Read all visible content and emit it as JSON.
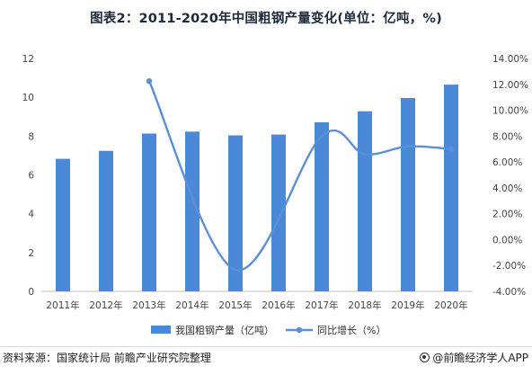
{
  "title": "图表2：2011-2020年中国粗钢产量变化(单位：亿吨，%)",
  "source": "资料来源：国家统计局 前瞻产业研究院整理",
  "brand": "@前瞻经济学人APP",
  "colors": {
    "bar": "#4a88d8",
    "line": "#5b8fd6",
    "title": "#1e2a3a"
  },
  "chart_data": {
    "type": "bar",
    "categories": [
      "2011年",
      "2012年",
      "2013年",
      "2014年",
      "2015年",
      "2016年",
      "2017年",
      "2018年",
      "2019年",
      "2020年"
    ],
    "series": [
      {
        "name": "我国粗钢产量（亿吨）",
        "type": "bar",
        "axis": "left",
        "values": [
          6.83,
          7.24,
          8.13,
          8.23,
          8.04,
          8.08,
          8.71,
          9.28,
          9.96,
          10.65
        ]
      },
      {
        "name": "同比增长（%）",
        "type": "line",
        "axis": "right",
        "values": [
          null,
          null,
          12.25,
          null,
          -2.33,
          null,
          8.0,
          6.6,
          7.2,
          7.0
        ]
      }
    ],
    "left_axis": {
      "min": 0,
      "max": 12,
      "ticks": [
        "0",
        "2",
        "4",
        "6",
        "8",
        "10",
        "12"
      ]
    },
    "right_axis": {
      "min": -4,
      "max": 14,
      "ticks": [
        "-4.00%",
        "-2.00%",
        "0.00%",
        "2.00%",
        "4.00%",
        "6.00%",
        "8.00%",
        "10.00%",
        "12.00%",
        "14.00%"
      ]
    },
    "legend": {
      "placement": "bottom"
    },
    "grid": false
  }
}
